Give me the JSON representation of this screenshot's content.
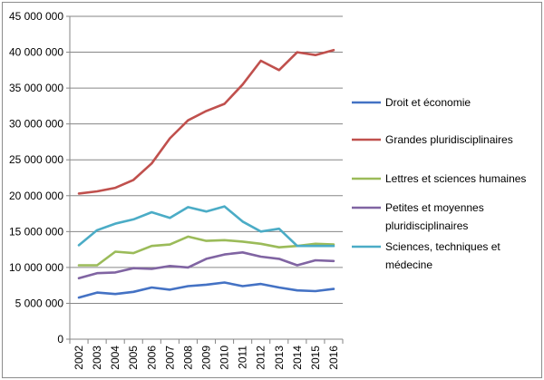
{
  "chart_data": {
    "type": "line",
    "title": "",
    "xlabel": "",
    "ylabel": "",
    "x": [
      "2002",
      "2003",
      "2004",
      "2005",
      "2006",
      "2007",
      "2008",
      "2009",
      "2010",
      "2011",
      "2012",
      "2013",
      "2014",
      "2015",
      "2016"
    ],
    "ylim": [
      0,
      45000000
    ],
    "yticks": [
      0,
      5000000,
      10000000,
      15000000,
      20000000,
      25000000,
      30000000,
      35000000,
      40000000,
      45000000
    ],
    "ytick_labels": [
      "0",
      "5 000 000",
      "10 000 000",
      "15 000 000",
      "20 000 000",
      "25 000 000",
      "30 000 000",
      "35 000 000",
      "40 000 000",
      "45 000 000"
    ],
    "grid": true,
    "legend_position": "right",
    "series": [
      {
        "name": "Droit et économie",
        "legend_lines": [
          "Droit et économie"
        ],
        "color": "#4472c4",
        "values": [
          5800000,
          6500000,
          6300000,
          6600000,
          7200000,
          6900000,
          7400000,
          7600000,
          7900000,
          7400000,
          7700000,
          7200000,
          6800000,
          6700000,
          7000000
        ]
      },
      {
        "name": "Grandes pluridisciplinaires",
        "legend_lines": [
          "Grandes pluridisciplinaires"
        ],
        "color": "#c0504d",
        "values": [
          20300000,
          20600000,
          21100000,
          22200000,
          24500000,
          28000000,
          30500000,
          31800000,
          32800000,
          35500000,
          38800000,
          37500000,
          40000000,
          39600000,
          40300000
        ]
      },
      {
        "name": "Lettres et sciences humaines",
        "legend_lines": [
          "Lettres et sciences humaines"
        ],
        "color": "#9bbb59",
        "values": [
          10300000,
          10300000,
          12200000,
          12000000,
          13000000,
          13200000,
          14300000,
          13700000,
          13800000,
          13600000,
          13300000,
          12800000,
          13000000,
          13300000,
          13200000
        ]
      },
      {
        "name": "Petites et moyennes pluridisciplinaires",
        "legend_lines": [
          "Petites et moyennes",
          "pluridisciplinaires"
        ],
        "color": "#8064a2",
        "values": [
          8500000,
          9200000,
          9300000,
          9900000,
          9800000,
          10200000,
          10000000,
          11200000,
          11800000,
          12100000,
          11500000,
          11200000,
          10300000,
          11000000,
          10900000
        ]
      },
      {
        "name": "Sciences, techniques et médecine",
        "legend_lines": [
          "Sciences, techniques et",
          "médecine"
        ],
        "color": "#4bacc6",
        "values": [
          13100000,
          15200000,
          16100000,
          16700000,
          17700000,
          16900000,
          18400000,
          17800000,
          18500000,
          16400000,
          15000000,
          15400000,
          13000000,
          13000000,
          13000000
        ]
      }
    ]
  }
}
